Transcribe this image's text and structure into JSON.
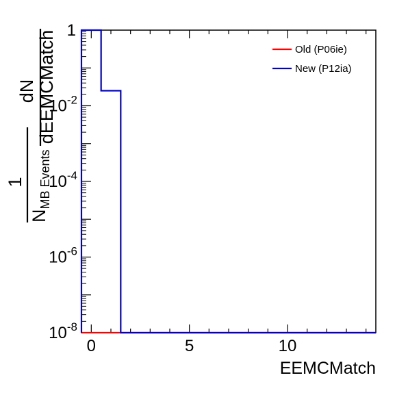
{
  "chart_data": {
    "type": "line",
    "render_style": "step-histogram",
    "xlabel": "EEMCMatch",
    "ylabel": {
      "prefactor_numerator": "1",
      "prefactor_denominator_main": "N",
      "prefactor_denominator_subscript": "MB Events",
      "fraction_numerator": "dN",
      "fraction_denominator": "dEEMCMatch"
    },
    "xlim": [
      -0.5,
      14.5
    ],
    "ylim": [
      1e-08,
      1
    ],
    "yscale": "log",
    "x_ticks": [
      {
        "value": 0,
        "label": "0"
      },
      {
        "value": 5,
        "label": "5"
      },
      {
        "value": 10,
        "label": "10"
      }
    ],
    "y_ticks": [
      {
        "value": 1,
        "label_base": "1",
        "label_exp": ""
      },
      {
        "value": 0.01,
        "label_base": "10",
        "label_exp": "-2"
      },
      {
        "value": 0.0001,
        "label_base": "10",
        "label_exp": "-4"
      },
      {
        "value": 1e-06,
        "label_base": "10",
        "label_exp": "-6"
      },
      {
        "value": 1e-08,
        "label_base": "10",
        "label_exp": "-8"
      }
    ],
    "legend_position": "top-right",
    "grid": false,
    "series": [
      {
        "name": "Old (P06ie)",
        "color": "#ff0000",
        "bin_edges": [
          -0.5,
          14.5
        ],
        "values": [
          1e-08
        ]
      },
      {
        "name": "New (P12ia)",
        "color": "#0000cc",
        "bin_edges": [
          -0.5,
          0.5,
          1.5,
          14.5
        ],
        "values": [
          1,
          0.025,
          1e-08
        ]
      }
    ]
  }
}
